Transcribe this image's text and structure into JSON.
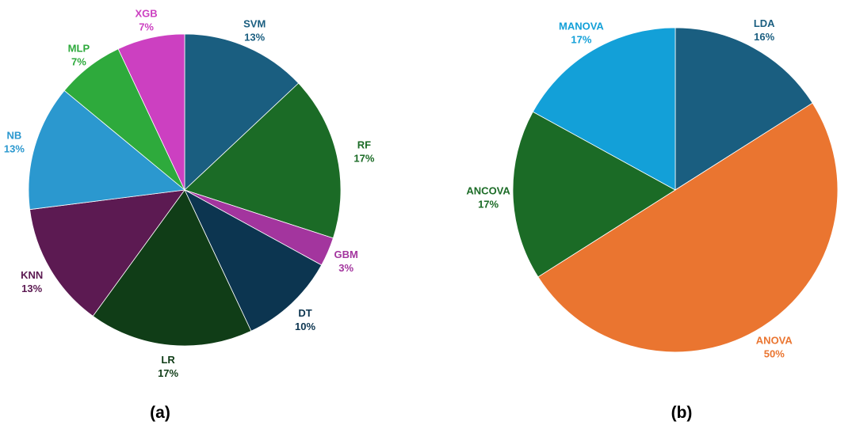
{
  "chart_data": [
    {
      "type": "pie",
      "panel_label": "(a)",
      "slices": [
        {
          "label": "SVM",
          "value": 13,
          "pct_text": "13%",
          "color": "#1a5e80"
        },
        {
          "label": "RF",
          "value": 17,
          "pct_text": "17%",
          "color": "#1b6b26"
        },
        {
          "label": "GBM",
          "value": 3,
          "pct_text": "3%",
          "color": "#a3359e"
        },
        {
          "label": "DT",
          "value": 10,
          "pct_text": "10%",
          "color": "#0c3550"
        },
        {
          "label": "LR",
          "value": 17,
          "pct_text": "17%",
          "color": "#103d17"
        },
        {
          "label": "KNN",
          "value": 13,
          "pct_text": "13%",
          "color": "#5c1a52"
        },
        {
          "label": "NB",
          "value": 13,
          "pct_text": "13%",
          "color": "#2b98cf"
        },
        {
          "label": "MLP",
          "value": 7,
          "pct_text": "7%",
          "color": "#2eaa3c"
        },
        {
          "label": "XGB",
          "value": 7,
          "pct_text": "7%",
          "color": "#cc40c1"
        }
      ]
    },
    {
      "type": "pie",
      "panel_label": "(b)",
      "slices": [
        {
          "label": "LDA",
          "value": 16,
          "pct_text": "16%",
          "color": "#1a5e80"
        },
        {
          "label": "ANOVA",
          "value": 50,
          "pct_text": "50%",
          "color": "#ea7530"
        },
        {
          "label": "ANCOVA",
          "value": 17,
          "pct_text": "17%",
          "color": "#1b6b26"
        },
        {
          "label": "MANOVA",
          "value": 17,
          "pct_text": "17%",
          "color": "#13a0d8"
        }
      ]
    }
  ]
}
